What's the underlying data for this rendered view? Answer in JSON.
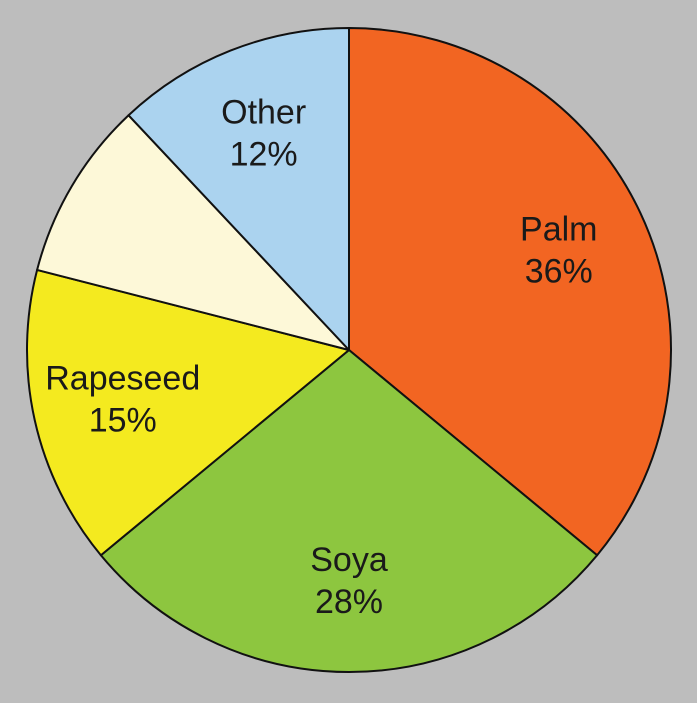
{
  "chart_data": {
    "type": "pie",
    "categories": [
      "Palm",
      "Soya",
      "Rapeseed",
      null,
      "Other"
    ],
    "values": [
      36,
      28,
      15,
      9,
      12
    ],
    "value_labels": [
      "36%",
      "28%",
      "15%",
      null,
      "12%"
    ],
    "colors": [
      "#f26522",
      "#8dc63f",
      "#f4ea1f",
      "#fdf8d8",
      "#abd3ef"
    ],
    "start_angle": 0,
    "direction": "clockwise"
  }
}
